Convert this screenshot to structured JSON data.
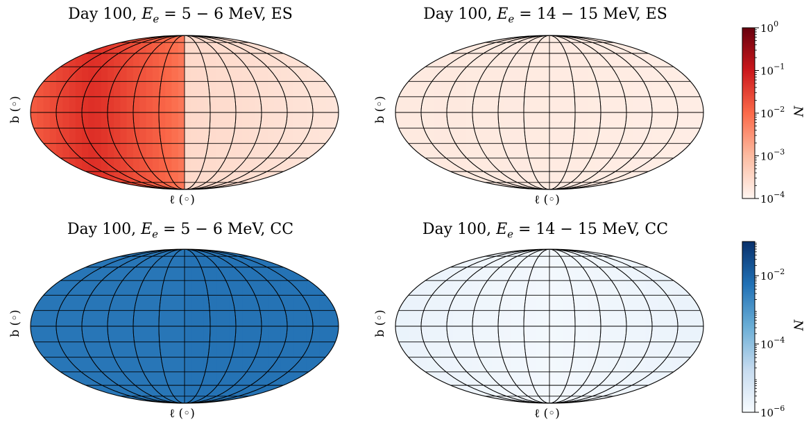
{
  "chart_data": [
    {
      "type": "heatmap",
      "projection": "mollweide",
      "title_prefix": "Day 100, ",
      "title_math": "E",
      "title_sub": "e",
      "title_range": " = 5 − 6 MeV, ES",
      "xlabel": "ℓ (◦)",
      "ylabel": "b (◦)",
      "colormap": "Reds",
      "pattern": "peak-left",
      "grid": true
    },
    {
      "type": "heatmap",
      "projection": "mollweide",
      "title_prefix": "Day 100, ",
      "title_math": "E",
      "title_sub": "e",
      "title_range": " = 14 − 15 MeV, ES",
      "xlabel": "ℓ (◦)",
      "ylabel": "b (◦)",
      "colormap": "Reds",
      "pattern": "faint-uniform",
      "grid": true
    },
    {
      "type": "heatmap",
      "projection": "mollweide",
      "title_prefix": "Day 100, ",
      "title_math": "E",
      "title_sub": "e",
      "title_range": " = 5 − 6 MeV, CC",
      "xlabel": "ℓ (◦)",
      "ylabel": "b (◦)",
      "colormap": "Blues",
      "pattern": "uniform-high",
      "grid": true
    },
    {
      "type": "heatmap",
      "projection": "mollweide",
      "title_prefix": "Day 100, ",
      "title_math": "E",
      "title_sub": "e",
      "title_range": " = 14 − 15 MeV, CC",
      "xlabel": "ℓ (◦)",
      "ylabel": "b (◦)",
      "colormap": "Blues",
      "pattern": "uniform-low",
      "grid": true
    }
  ],
  "colorbars": [
    {
      "label": "N",
      "scale": "log",
      "range": [
        0.0001,
        1
      ],
      "ticks": [
        {
          "base": "10",
          "exp": "0",
          "value": 1
        },
        {
          "base": "10",
          "exp": "−1",
          "value": 0.1
        },
        {
          "base": "10",
          "exp": "−2",
          "value": 0.01
        },
        {
          "base": "10",
          "exp": "−3",
          "value": 0.001
        },
        {
          "base": "10",
          "exp": "−4",
          "value": 0.0001
        }
      ],
      "colors": [
        "#fff5f0",
        "#fcbba1",
        "#fb6a4a",
        "#cb181d",
        "#67000d"
      ]
    },
    {
      "label": "N",
      "scale": "log",
      "range": [
        1e-06,
        0.1
      ],
      "ticks": [
        {
          "base": "10",
          "exp": "−2",
          "value": 0.01
        },
        {
          "base": "10",
          "exp": "−4",
          "value": 0.0001
        },
        {
          "base": "10",
          "exp": "−6",
          "value": 1e-06
        }
      ],
      "colors": [
        "#f7fbff",
        "#c6dbef",
        "#6baed6",
        "#2171b5",
        "#08306b"
      ]
    }
  ]
}
